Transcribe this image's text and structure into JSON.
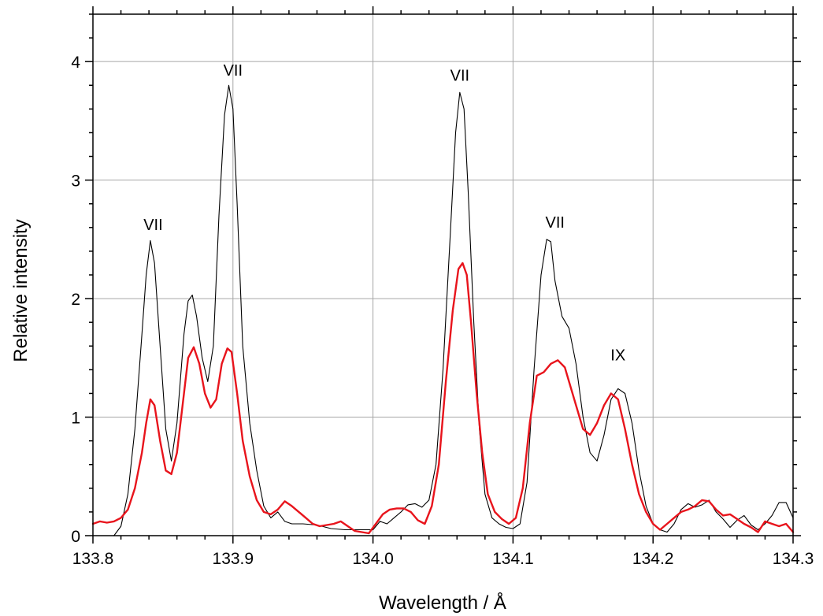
{
  "chart_data": {
    "type": "line",
    "title": "",
    "xlabel": "Wavelength / Å",
    "ylabel": "Relative intensity",
    "xlim": [
      133.8,
      134.3
    ],
    "ylim": [
      0,
      4.4
    ],
    "grid": true,
    "x_ticks": [
      133.8,
      133.9,
      134.0,
      134.1,
      134.2,
      134.3
    ],
    "x_tick_labels": [
      "133.8",
      "133.9",
      "134.0",
      "134.1",
      "134.2",
      "134.3"
    ],
    "y_ticks": [
      0,
      1,
      2,
      3,
      4
    ],
    "y_tick_labels": [
      "0",
      "1",
      "2",
      "3",
      "4"
    ],
    "annotations": [
      {
        "text": "VII",
        "x": 133.843,
        "y": 2.58
      },
      {
        "text": "VII",
        "x": 133.9,
        "y": 3.88
      },
      {
        "text": "VII",
        "x": 134.062,
        "y": 3.84
      },
      {
        "text": "VII",
        "x": 134.13,
        "y": 2.6
      },
      {
        "text": "IX",
        "x": 134.175,
        "y": 1.48
      }
    ],
    "series": [
      {
        "color": "#000000",
        "x": [
          133.815,
          133.82,
          133.825,
          133.83,
          133.835,
          133.838,
          133.841,
          133.844,
          133.848,
          133.852,
          133.856,
          133.86,
          133.865,
          133.868,
          133.871,
          133.874,
          133.878,
          133.882,
          133.886,
          133.89,
          133.894,
          133.897,
          133.9,
          133.903,
          133.907,
          133.912,
          133.917,
          133.922,
          133.927,
          133.932,
          133.937,
          133.942,
          133.95,
          133.96,
          133.97,
          133.98,
          133.99,
          134.0,
          134.005,
          134.01,
          134.015,
          134.02,
          134.025,
          134.03,
          134.035,
          134.04,
          134.045,
          134.05,
          134.055,
          134.059,
          134.062,
          134.065,
          134.068,
          134.072,
          134.076,
          134.08,
          134.085,
          134.09,
          134.095,
          134.1,
          134.105,
          134.11,
          134.115,
          134.12,
          134.124,
          134.127,
          134.13,
          134.135,
          134.14,
          134.145,
          134.15,
          134.155,
          134.16,
          134.165,
          134.17,
          134.175,
          134.18,
          134.185,
          134.19,
          134.195,
          134.2,
          134.205,
          134.21,
          134.215,
          134.22,
          134.225,
          134.23,
          134.235,
          134.24,
          134.245,
          134.25,
          134.255,
          134.26,
          134.265,
          134.27,
          134.275,
          134.28,
          134.285,
          134.29,
          134.295,
          134.3
        ],
        "y": [
          0.0,
          0.08,
          0.35,
          0.9,
          1.7,
          2.2,
          2.49,
          2.3,
          1.6,
          0.9,
          0.63,
          0.95,
          1.7,
          1.98,
          2.03,
          1.85,
          1.5,
          1.3,
          1.6,
          2.7,
          3.55,
          3.8,
          3.6,
          2.8,
          1.6,
          0.95,
          0.55,
          0.25,
          0.15,
          0.2,
          0.12,
          0.1,
          0.1,
          0.09,
          0.06,
          0.05,
          0.05,
          0.05,
          0.12,
          0.1,
          0.15,
          0.2,
          0.26,
          0.27,
          0.24,
          0.3,
          0.6,
          1.4,
          2.5,
          3.4,
          3.74,
          3.6,
          2.9,
          1.8,
          0.9,
          0.35,
          0.15,
          0.1,
          0.07,
          0.06,
          0.1,
          0.45,
          1.4,
          2.2,
          2.5,
          2.48,
          2.15,
          1.85,
          1.75,
          1.45,
          1.0,
          0.7,
          0.63,
          0.85,
          1.15,
          1.24,
          1.2,
          0.95,
          0.55,
          0.25,
          0.1,
          0.05,
          0.03,
          0.1,
          0.22,
          0.27,
          0.24,
          0.26,
          0.3,
          0.2,
          0.14,
          0.07,
          0.13,
          0.17,
          0.09,
          0.05,
          0.1,
          0.17,
          0.28,
          0.28,
          0.15
        ]
      },
      {
        "color": "#e8141c",
        "x": [
          133.8,
          133.805,
          133.81,
          133.815,
          133.82,
          133.825,
          133.83,
          133.835,
          133.838,
          133.841,
          133.844,
          133.848,
          133.852,
          133.856,
          133.86,
          133.865,
          133.868,
          133.872,
          133.876,
          133.88,
          133.884,
          133.888,
          133.892,
          133.896,
          133.899,
          133.903,
          133.907,
          133.912,
          133.917,
          133.922,
          133.927,
          133.932,
          133.937,
          133.942,
          133.947,
          133.952,
          133.957,
          133.962,
          133.967,
          133.972,
          133.977,
          133.982,
          133.987,
          133.992,
          133.997,
          134.002,
          134.007,
          134.012,
          134.017,
          134.022,
          134.027,
          134.032,
          134.037,
          134.042,
          134.047,
          134.052,
          134.057,
          134.061,
          134.064,
          134.067,
          134.07,
          134.074,
          134.078,
          134.082,
          134.087,
          134.092,
          134.097,
          134.102,
          134.107,
          134.112,
          134.117,
          134.122,
          134.127,
          134.132,
          134.137,
          134.14,
          134.145,
          134.15,
          134.155,
          134.16,
          134.165,
          134.17,
          134.175,
          134.18,
          134.185,
          134.19,
          134.195,
          134.2,
          134.205,
          134.21,
          134.215,
          134.22,
          134.225,
          134.23,
          134.235,
          134.24,
          134.245,
          134.25,
          134.255,
          134.26,
          134.265,
          134.27,
          134.275,
          134.28,
          134.285,
          134.29,
          134.295,
          134.3
        ],
        "y": [
          0.1,
          0.12,
          0.11,
          0.12,
          0.15,
          0.22,
          0.4,
          0.7,
          0.95,
          1.15,
          1.1,
          0.8,
          0.55,
          0.52,
          0.7,
          1.2,
          1.5,
          1.59,
          1.45,
          1.2,
          1.08,
          1.15,
          1.45,
          1.58,
          1.55,
          1.2,
          0.8,
          0.5,
          0.3,
          0.2,
          0.18,
          0.22,
          0.29,
          0.25,
          0.2,
          0.15,
          0.1,
          0.08,
          0.09,
          0.1,
          0.12,
          0.08,
          0.04,
          0.03,
          0.02,
          0.1,
          0.18,
          0.22,
          0.23,
          0.23,
          0.2,
          0.13,
          0.1,
          0.25,
          0.6,
          1.3,
          1.9,
          2.25,
          2.3,
          2.2,
          1.8,
          1.2,
          0.7,
          0.35,
          0.2,
          0.14,
          0.1,
          0.15,
          0.4,
          0.95,
          1.35,
          1.38,
          1.45,
          1.48,
          1.42,
          1.3,
          1.1,
          0.9,
          0.85,
          0.95,
          1.1,
          1.2,
          1.15,
          0.9,
          0.6,
          0.35,
          0.2,
          0.1,
          0.05,
          0.1,
          0.15,
          0.2,
          0.22,
          0.25,
          0.3,
          0.29,
          0.22,
          0.17,
          0.18,
          0.14,
          0.1,
          0.07,
          0.03,
          0.12,
          0.1,
          0.08,
          0.1,
          0.03
        ]
      }
    ]
  }
}
